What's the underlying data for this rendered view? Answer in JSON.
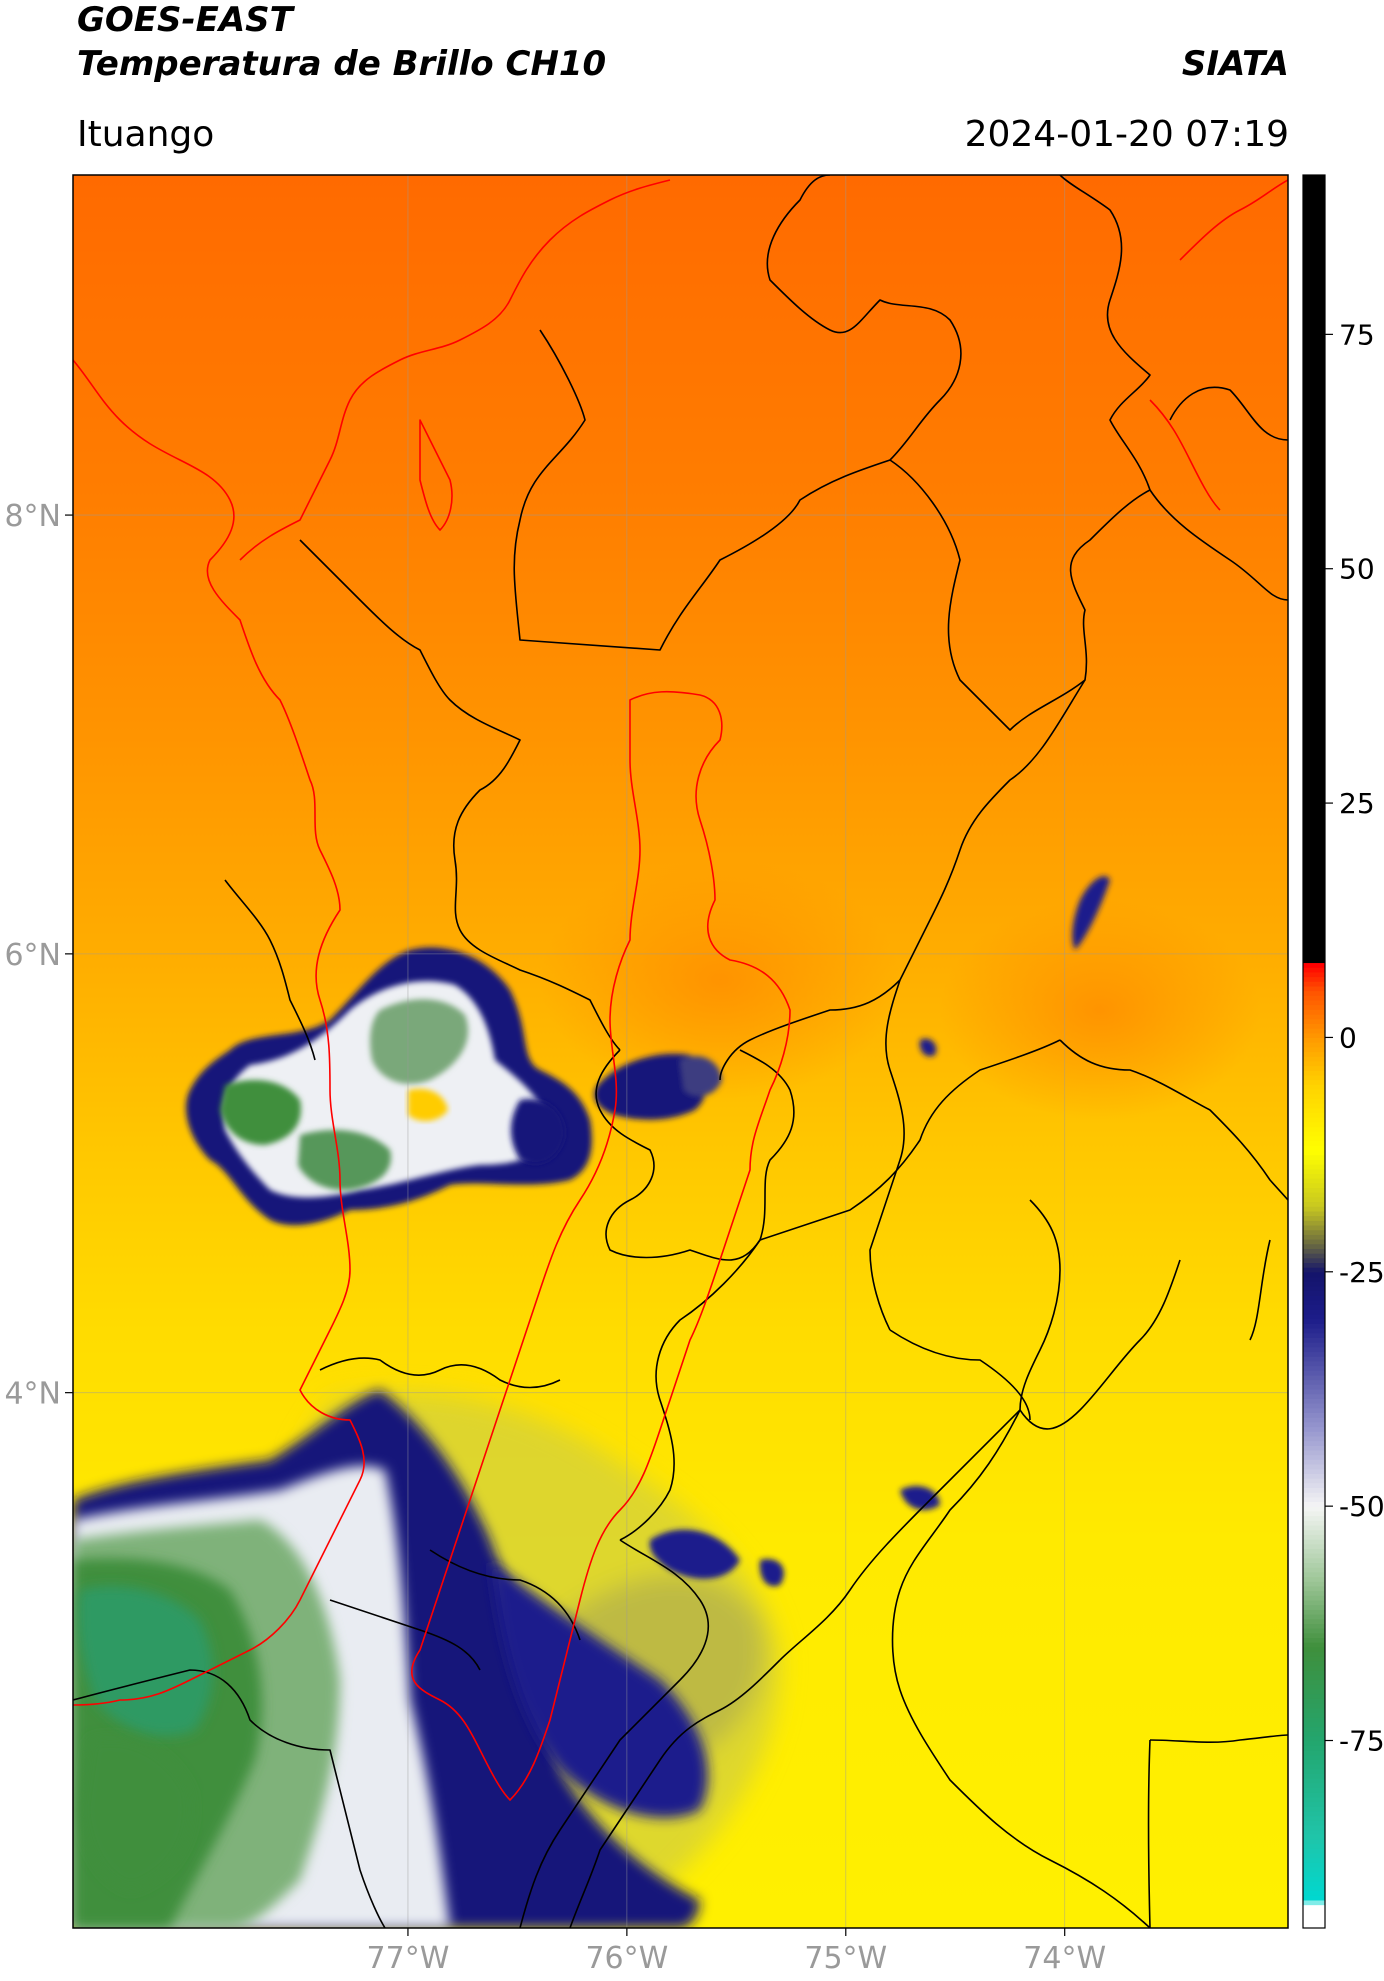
{
  "header": {
    "satellite": "GOES-EAST",
    "product": "Temperatura de Brillo CH10",
    "agency": "SIATA",
    "region": "Ituango",
    "datetime": "2024-01-20 07:19"
  },
  "map": {
    "lon_ticks": [
      {
        "value": -77,
        "label": "77°W"
      },
      {
        "value": -76,
        "label": "76°W"
      },
      {
        "value": -75,
        "label": "75°W"
      },
      {
        "value": -74,
        "label": "74°W"
      }
    ],
    "lat_ticks": [
      {
        "value": 8,
        "label": "8°N"
      },
      {
        "value": 6,
        "label": "6°N"
      },
      {
        "value": 4,
        "label": "4°N"
      }
    ],
    "extent": {
      "lon_min": -78.53,
      "lon_max": -72.98,
      "lat_min": 1.56,
      "lat_max": 9.55
    },
    "colors": {
      "warm_north": "#ff6f00",
      "mid_orange": "#ff9a00",
      "yellow": "#ffe600",
      "cold_blue": "#13137a",
      "cold_white": "#f0f2f5",
      "cold_green": "#3f8f3c",
      "basin_outline": "#ff0000",
      "admin_borders": "#000000",
      "grid": "#9a9a9a"
    }
  },
  "colorbar": {
    "min": -95,
    "max": 92,
    "ticks": [
      {
        "value": 75,
        "label": "75"
      },
      {
        "value": 50,
        "label": "50"
      },
      {
        "value": 25,
        "label": "25"
      },
      {
        "value": 0,
        "label": "0"
      },
      {
        "value": -25,
        "label": "-25"
      },
      {
        "value": -50,
        "label": "-50"
      },
      {
        "value": -75,
        "label": "-75"
      }
    ],
    "stops": [
      {
        "v": -95,
        "c": "#ffffff"
      },
      {
        "v": -92.5,
        "c": "#ffffff"
      },
      {
        "v": -92,
        "c": "#00d8d0"
      },
      {
        "v": -85,
        "c": "#20c4a8"
      },
      {
        "v": -75,
        "c": "#23a66e"
      },
      {
        "v": -65,
        "c": "#3f8f3c"
      },
      {
        "v": -58,
        "c": "#9cc596"
      },
      {
        "v": -50,
        "c": "#f5f5f5"
      },
      {
        "v": -42,
        "c": "#9a9ad0"
      },
      {
        "v": -30,
        "c": "#1c1c8a"
      },
      {
        "v": -25,
        "c": "#14146a"
      },
      {
        "v": -22,
        "c": "#6a6a40"
      },
      {
        "v": -18,
        "c": "#c8c820"
      },
      {
        "v": -12,
        "c": "#ffff00"
      },
      {
        "v": -5,
        "c": "#ffd200"
      },
      {
        "v": 0,
        "c": "#ff9900"
      },
      {
        "v": 5,
        "c": "#ff5200"
      },
      {
        "v": 7.8,
        "c": "#ff0000"
      },
      {
        "v": 8,
        "c": "#000000"
      },
      {
        "v": 92,
        "c": "#000000"
      }
    ]
  }
}
